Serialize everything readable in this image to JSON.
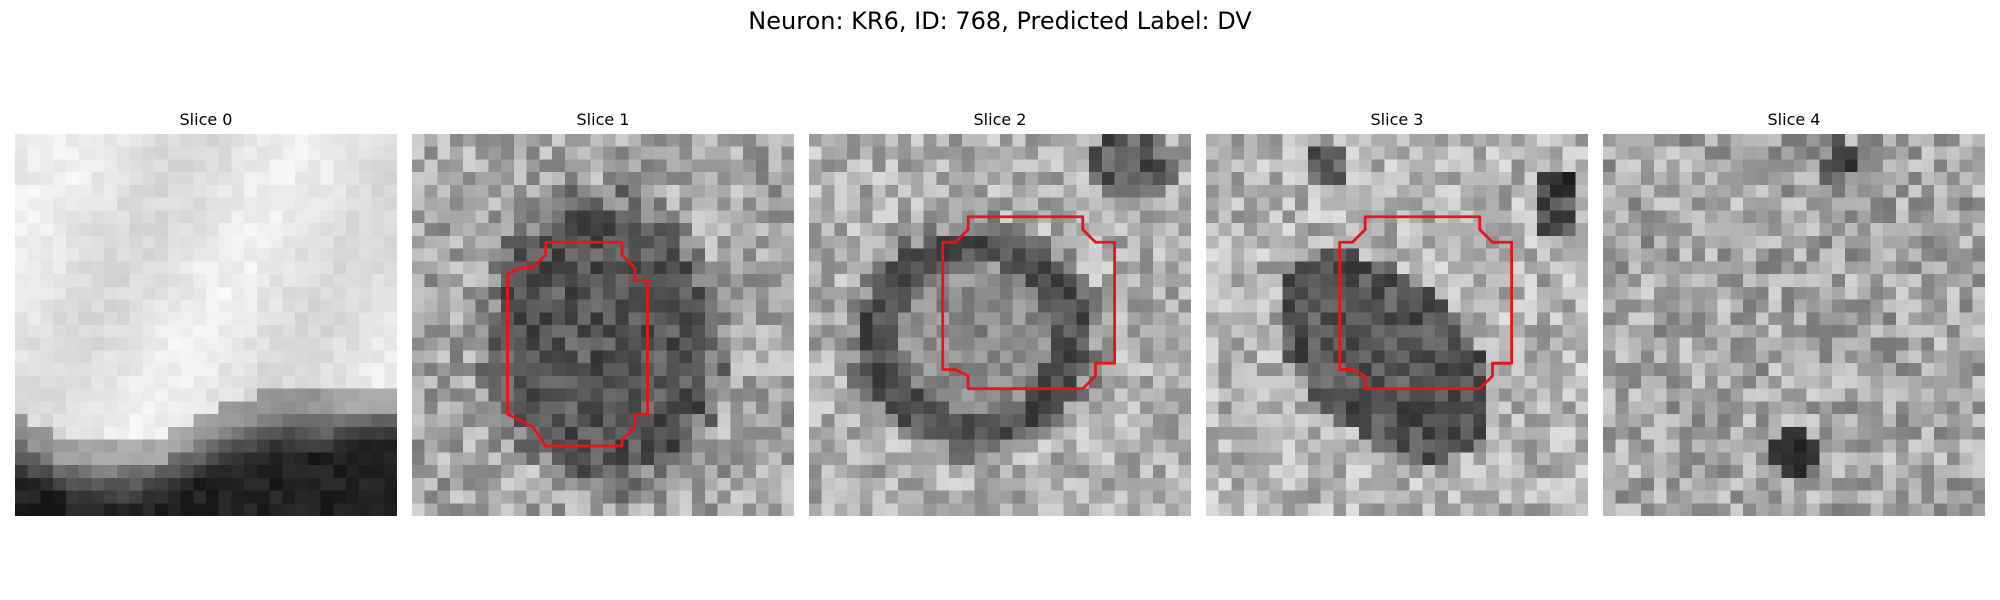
{
  "figure": {
    "title": "Neuron: KR6, ID: 768, Predicted Label: DV"
  },
  "panels": [
    {
      "title": "Slice 0",
      "contour": "none",
      "contour_color": "#e8141b"
    },
    {
      "title": "Slice 1",
      "contour": "octagonal-outline",
      "contour_color": "#e8141b"
    },
    {
      "title": "Slice 2",
      "contour": "octagonal-outline",
      "contour_color": "#e8141b"
    },
    {
      "title": "Slice 3",
      "contour": "octagonal-outline",
      "contour_color": "#e8141b"
    },
    {
      "title": "Slice 4",
      "contour": "none",
      "contour_color": "#e8141b"
    }
  ]
}
